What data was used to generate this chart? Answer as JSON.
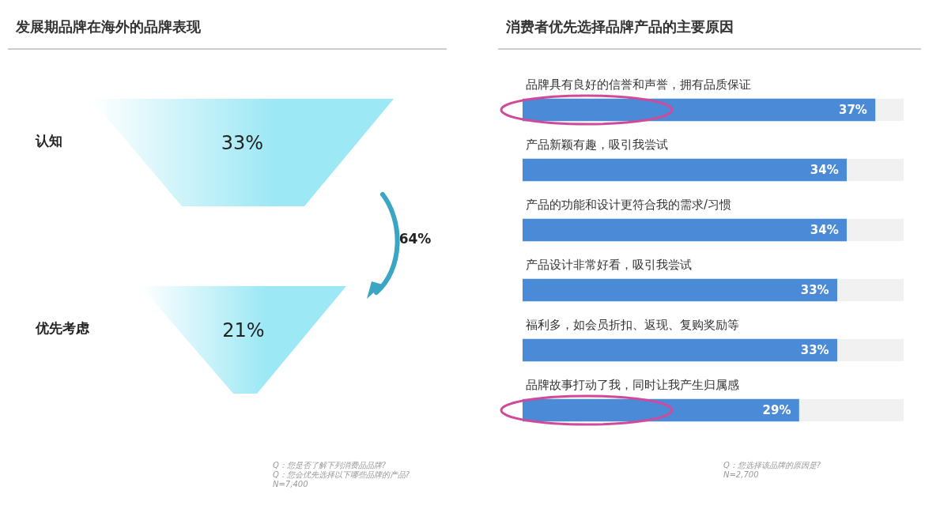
{
  "chart_data": [
    {
      "type": "other",
      "title": "发展期品牌在海外的品牌表现",
      "categories": [
        "认知",
        "优先考虑"
      ],
      "values": [
        33,
        21
      ],
      "value_labels": [
        "33%",
        "21%"
      ],
      "color": "#9de8f5",
      "annotations": [
        "64%",
        "Q：您是否了解下列消费品品牌?",
        "Q：您会优先选择以下哪些品牌的产品?",
        "N=7,400"
      ]
    },
    {
      "type": "bar",
      "orientation": "horizontal",
      "title": "消费者优先选择品牌产品的主要原因",
      "categories": [
        "品牌具有良好的信誉和声誉，拥有品质保证",
        "产品新颖有趣，吸引我尝试",
        "产品的功能和设计更符合我的需求/习惯",
        "产品设计非常好看，吸引我尝试",
        "福利多，如会员折扣、返现、复购奖励等",
        "品牌故事打动了我，同时让我产生归属感"
      ],
      "values": [
        37,
        34,
        34,
        33,
        33,
        29
      ],
      "value_labels": [
        "37%",
        "34%",
        "34%",
        "33%",
        "33%",
        "29%"
      ],
      "color": "#4a8ad6",
      "tick_labels": "y",
      "annotations": [
        "Q：您选择该品牌的原因是?",
        "N=2,700"
      ]
    }
  ]
}
